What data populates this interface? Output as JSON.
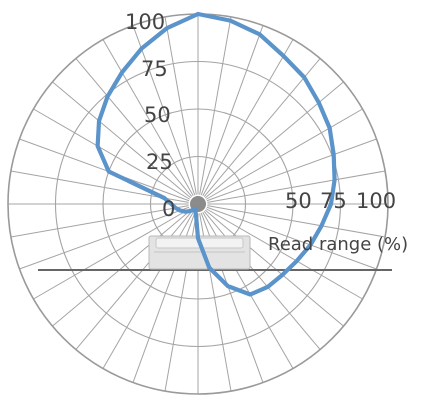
{
  "chart_data": {
    "type": "line",
    "subtype": "polar",
    "xlabel": "Read range (%)",
    "ylim": [
      0,
      100
    ],
    "tick_labels": [
      "0",
      "25",
      "50",
      "75",
      "100"
    ],
    "side_tick_labels": [
      "50",
      "75",
      "100"
    ],
    "grid": true,
    "series": [
      {
        "color": "#5b93cb",
        "angles_deg": [
          0,
          10,
          20,
          30,
          40,
          50,
          60,
          70,
          80,
          90,
          100,
          110,
          120,
          130,
          140,
          150,
          160,
          170,
          180,
          190,
          200,
          210,
          220,
          230,
          240,
          250,
          260,
          270,
          280,
          290,
          300,
          310,
          320,
          330,
          340,
          350,
          360
        ],
        "values": [
          100,
          98,
          95,
          90,
          87,
          83,
          80,
          76,
          73,
          70,
          66,
          63,
          60,
          58,
          57,
          55,
          46,
          34,
          18,
          6,
          4,
          3,
          4,
          6,
          8,
          10,
          12,
          14,
          18,
          50,
          61,
          68,
          74,
          80,
          87,
          94,
          100
        ]
      }
    ]
  }
}
